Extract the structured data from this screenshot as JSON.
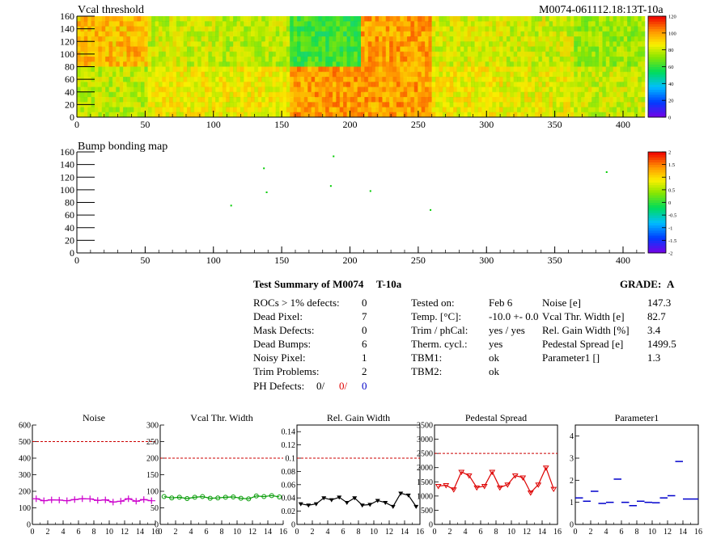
{
  "header": {
    "vcal_title": "Vcal threshold",
    "module_id": "M0074-061112.18:13T-10a",
    "bump_title": "Bump bonding map"
  },
  "maps": [
    {
      "name": "vcal-threshold-map",
      "type": "heatmap",
      "title": "Vcal threshold",
      "xlim": [
        0,
        416
      ],
      "ylim": [
        0,
        160
      ],
      "xticks": [
        "0",
        "50",
        "100",
        "150",
        "200",
        "250",
        "300",
        "350",
        "400"
      ],
      "yticks": [
        "0",
        "20",
        "40",
        "60",
        "80",
        "100",
        "120",
        "140",
        "160"
      ],
      "palette_range": [
        0,
        120
      ],
      "palette_labels": [
        "0",
        "20",
        "40",
        "60",
        "80",
        "100",
        "120"
      ],
      "roc_means_top": [
        95,
        80,
        78,
        62,
        100,
        82,
        80,
        74
      ],
      "roc_means_bottom": [
        78,
        86,
        86,
        100,
        100,
        86,
        84,
        80
      ]
    },
    {
      "name": "bump-bonding-map",
      "type": "scatter",
      "title": "Bump bonding map",
      "xlim": [
        0,
        416
      ],
      "ylim": [
        0,
        160
      ],
      "xticks": [
        "0",
        "50",
        "100",
        "150",
        "200",
        "250",
        "300",
        "350",
        "400"
      ],
      "yticks": [
        "0",
        "20",
        "40",
        "60",
        "80",
        "100",
        "120",
        "140",
        "160"
      ],
      "palette_range": [
        -2,
        2
      ],
      "palette_labels": [
        "-2",
        "-1.5",
        "-1",
        "-0.5",
        "0",
        "0.5",
        "1",
        "1.5",
        "2"
      ],
      "points": [
        [
          113,
          75
        ],
        [
          137,
          134
        ],
        [
          139,
          96
        ],
        [
          186,
          106
        ],
        [
          188,
          153
        ],
        [
          215,
          98
        ],
        [
          259,
          68
        ],
        [
          388,
          128
        ]
      ]
    }
  ],
  "summary": {
    "title": "Test Summary of M0074",
    "temp_label": "T-10a",
    "grade_label": "GRADE:",
    "grade_value": "A",
    "left_items": [
      {
        "label": "ROCs > 1% defects:",
        "value": "0"
      },
      {
        "label": "Dead Pixel:",
        "value": "7"
      },
      {
        "label": "Mask Defects:",
        "value": "0"
      },
      {
        "label": "Dead Bumps:",
        "value": "6"
      },
      {
        "label": "Noisy Pixel:",
        "value": "1"
      },
      {
        "label": "Trim Problems:",
        "value": "2"
      }
    ],
    "ph_defects": {
      "label": "PH Defects:",
      "v1": "0/",
      "v2": "0/",
      "v3": "0"
    },
    "mid_items": [
      {
        "label": "Tested on:",
        "value": "Feb 6"
      },
      {
        "label": "Temp. [°C]:",
        "value": "-10.0 +- 0.0"
      },
      {
        "label": "Trim / phCal:",
        "value": "yes / yes"
      },
      {
        "label": "Therm. cycl.:",
        "value": "yes"
      },
      {
        "label": "TBM1:",
        "value": "ok"
      },
      {
        "label": "TBM2:",
        "value": "ok"
      }
    ],
    "right_items": [
      {
        "label": "Noise [e]",
        "value": "147.3"
      },
      {
        "label": "Vcal Thr. Width [e]",
        "value": "82.7"
      },
      {
        "label": "Rel. Gain Width [%]",
        "value": "3.4"
      },
      {
        "label": "Pedestal Spread [e]",
        "value": "1499.5"
      },
      {
        "label": "Parameter1 []",
        "value": "1.3"
      }
    ]
  },
  "chart_data": [
    {
      "type": "line",
      "name": "noise",
      "title": "Noise",
      "framed": false,
      "color": "#cc00cc",
      "marker": "plus",
      "x": [
        0,
        1,
        2,
        3,
        4,
        5,
        6,
        7,
        8,
        9,
        10,
        11,
        12,
        13,
        14,
        15
      ],
      "values": [
        155,
        143,
        148,
        147,
        143,
        150,
        155,
        154,
        145,
        148,
        135,
        140,
        155,
        140,
        150,
        143
      ],
      "limit": 500,
      "ylim": [
        0,
        600
      ],
      "yticks": [
        "0",
        "100",
        "200",
        "300",
        "400",
        "500",
        "600"
      ],
      "xticks": [
        "0",
        "2",
        "4",
        "6",
        "8",
        "10",
        "12",
        "14",
        "16"
      ],
      "xlim": [
        0,
        16
      ]
    },
    {
      "type": "line",
      "name": "vcal-thr-width",
      "title": "Vcal Thr. Width",
      "framed": false,
      "color": "#009900",
      "marker": "circle",
      "x": [
        0,
        1,
        2,
        3,
        4,
        5,
        6,
        7,
        8,
        9,
        10,
        11,
        12,
        13,
        14,
        15
      ],
      "values": [
        84,
        80,
        82,
        78,
        82,
        84,
        79,
        80,
        82,
        83,
        79,
        77,
        86,
        84,
        87,
        83
      ],
      "limit": 200,
      "ylim": [
        0,
        300
      ],
      "yticks": [
        "0",
        "50",
        "100",
        "150",
        "200",
        "250",
        "300"
      ],
      "xticks": [
        "0",
        "2",
        "4",
        "6",
        "8",
        "10",
        "12",
        "14",
        "16"
      ],
      "xlim": [
        0,
        16
      ]
    },
    {
      "type": "line",
      "name": "rel-gain-width",
      "title": "Rel. Gain Width",
      "framed": true,
      "color": "#000000",
      "marker": "triangle",
      "x": [
        0,
        1,
        2,
        3,
        4,
        5,
        6,
        7,
        8,
        9,
        10,
        11,
        12,
        13,
        14,
        15
      ],
      "values": [
        0.031,
        0.029,
        0.031,
        0.04,
        0.037,
        0.041,
        0.033,
        0.04,
        0.029,
        0.03,
        0.036,
        0.033,
        0.027,
        0.047,
        0.044,
        0.027
      ],
      "limit": 0.1,
      "ylim": [
        0,
        0.15
      ],
      "yticks": [
        "0",
        "0.02",
        "0.04",
        "0.06",
        "0.08",
        "0.1",
        "0.12",
        "0.14"
      ],
      "xticks": [
        "0",
        "2",
        "4",
        "6",
        "8",
        "10",
        "12",
        "14",
        "16"
      ],
      "xlim": [
        0,
        16
      ]
    },
    {
      "type": "line",
      "name": "pedestal-spread",
      "title": "Pedestal Spread",
      "framed": true,
      "color": "#dd0000",
      "marker": "triangle-open",
      "x": [
        0,
        1,
        2,
        3,
        4,
        5,
        6,
        7,
        8,
        9,
        10,
        11,
        12,
        13,
        14,
        15
      ],
      "values": [
        1350,
        1380,
        1230,
        1850,
        1720,
        1300,
        1350,
        1850,
        1300,
        1400,
        1720,
        1650,
        1120,
        1400,
        2000,
        1250
      ],
      "limit": 2500,
      "ylim": [
        0,
        3500
      ],
      "yticks": [
        "0",
        "500",
        "1000",
        "1500",
        "2000",
        "2500",
        "3000",
        "3500"
      ],
      "xticks": [
        "0",
        "2",
        "4",
        "6",
        "8",
        "10",
        "12",
        "14",
        "16"
      ],
      "xlim": [
        0,
        16
      ]
    },
    {
      "type": "scatter",
      "name": "parameter1",
      "title": "Parameter1",
      "framed": true,
      "color": "#0000cc",
      "marker": "hbar",
      "x": [
        0,
        1,
        2,
        3,
        4,
        5,
        6,
        7,
        8,
        9,
        10,
        11,
        12,
        13,
        14,
        15
      ],
      "values": [
        1.2,
        1.05,
        1.5,
        0.95,
        1.0,
        2.05,
        1.0,
        0.85,
        1.05,
        1.0,
        0.98,
        1.2,
        1.3,
        2.85,
        1.15,
        1.15
      ],
      "ylim": [
        0,
        4.5
      ],
      "yticks": [
        "0",
        "1",
        "2",
        "3",
        "4"
      ],
      "xticks": [
        "0",
        "2",
        "4",
        "6",
        "8",
        "10",
        "12",
        "14",
        "16"
      ],
      "xlim": [
        0,
        16
      ]
    }
  ]
}
